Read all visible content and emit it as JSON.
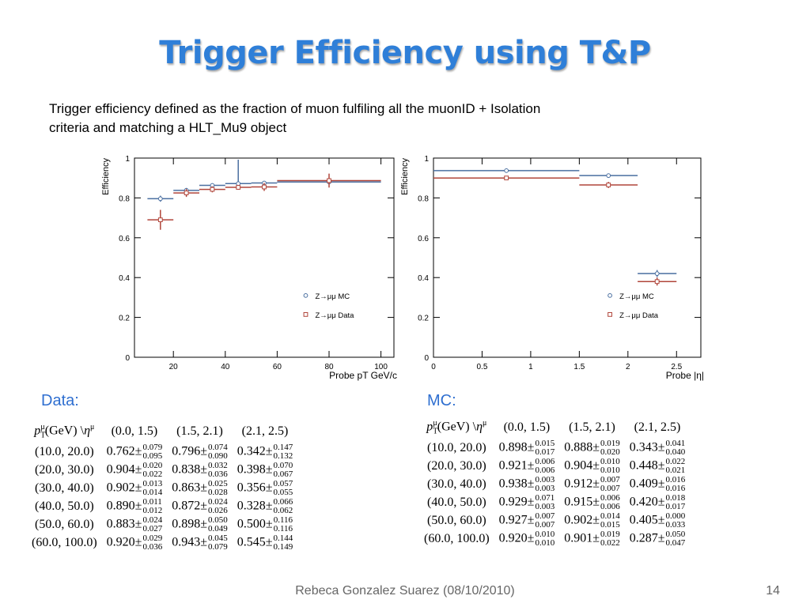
{
  "slide": {
    "title": "Trigger Efficiency using T&P",
    "subtitle_line1": "Trigger efficiency defined as the fraction of muon fulfiling all the muonID + Isolation",
    "subtitle_line2": "criteria and matching a HLT_Mu9 object",
    "footer": "Rebeca Gonzalez Suarez  (08/10/2010)",
    "page_number": "14"
  },
  "colors": {
    "title": "#2f7fd8",
    "mc": "#4a6fa0",
    "data": "#b0453a",
    "section": "#2f6fd0"
  },
  "chart_data": [
    {
      "type": "scatter",
      "ylabel": "Efficiency",
      "xlabel": "Probe pT GeV/c",
      "xlim": [
        5,
        105
      ],
      "ylim": [
        0,
        1
      ],
      "xticks": [
        20,
        40,
        60,
        80,
        100
      ],
      "yticks": [
        0,
        0.2,
        0.4,
        0.6,
        0.8,
        1
      ],
      "legend": {
        "position": "bottom-right",
        "entries": [
          "Z→μμ  MC",
          "Z→μμ  Data"
        ]
      },
      "series": [
        {
          "name": "Z→μμ  MC",
          "marker": "circle",
          "color": "#4a6fa0",
          "points": [
            {
              "x": 15,
              "xlo": 10,
              "xhi": 20,
              "y": 0.796,
              "eup": 0.015,
              "edn": 0.015
            },
            {
              "x": 25,
              "xlo": 20,
              "xhi": 30,
              "y": 0.838,
              "eup": 0.012,
              "edn": 0.012
            },
            {
              "x": 35,
              "xlo": 30,
              "xhi": 40,
              "y": 0.863,
              "eup": 0.01,
              "edn": 0.01
            },
            {
              "x": 45,
              "xlo": 40,
              "xhi": 50,
              "y": 0.872,
              "eup": 0.12,
              "edn": 0.02
            },
            {
              "x": 55,
              "xlo": 50,
              "xhi": 60,
              "y": 0.875,
              "eup": 0.01,
              "edn": 0.01
            },
            {
              "x": 80,
              "xlo": 60,
              "xhi": 100,
              "y": 0.88,
              "eup": 0.01,
              "edn": 0.01
            }
          ]
        },
        {
          "name": "Z→μμ  Data",
          "marker": "square",
          "color": "#b0453a",
          "points": [
            {
              "x": 15,
              "xlo": 10,
              "xhi": 20,
              "y": 0.69,
              "eup": 0.05,
              "edn": 0.05
            },
            {
              "x": 25,
              "xlo": 20,
              "xhi": 30,
              "y": 0.825,
              "eup": 0.02,
              "edn": 0.02
            },
            {
              "x": 35,
              "xlo": 30,
              "xhi": 40,
              "y": 0.843,
              "eup": 0.015,
              "edn": 0.015
            },
            {
              "x": 45,
              "xlo": 40,
              "xhi": 50,
              "y": 0.853,
              "eup": 0.012,
              "edn": 0.012
            },
            {
              "x": 55,
              "xlo": 50,
              "xhi": 60,
              "y": 0.855,
              "eup": 0.02,
              "edn": 0.02
            },
            {
              "x": 80,
              "xlo": 60,
              "xhi": 100,
              "y": 0.887,
              "eup": 0.035,
              "edn": 0.035
            }
          ]
        }
      ]
    },
    {
      "type": "scatter",
      "ylabel": "Efficiency",
      "xlabel": "Probe |η|",
      "xlim": [
        0,
        2.75
      ],
      "ylim": [
        0,
        1
      ],
      "xticks": [
        0,
        0.5,
        1,
        1.5,
        2,
        2.5
      ],
      "yticks": [
        0,
        0.2,
        0.4,
        0.6,
        0.8,
        1
      ],
      "legend": {
        "position": "bottom-right",
        "entries": [
          "Z→μμ  MC",
          "Z→μμ  Data"
        ]
      },
      "series": [
        {
          "name": "Z→μμ  MC",
          "marker": "circle",
          "color": "#4a6fa0",
          "points": [
            {
              "x": 0.75,
              "xlo": 0.0,
              "xhi": 1.5,
              "y": 0.937,
              "eup": 0.005,
              "edn": 0.005
            },
            {
              "x": 1.8,
              "xlo": 1.5,
              "xhi": 2.1,
              "y": 0.912,
              "eup": 0.007,
              "edn": 0.007
            },
            {
              "x": 2.3,
              "xlo": 2.1,
              "xhi": 2.5,
              "y": 0.42,
              "eup": 0.018,
              "edn": 0.017
            }
          ]
        },
        {
          "name": "Z→μμ  Data",
          "marker": "square",
          "color": "#b0453a",
          "points": [
            {
              "x": 0.75,
              "xlo": 0.0,
              "xhi": 1.5,
              "y": 0.9,
              "eup": 0.008,
              "edn": 0.008
            },
            {
              "x": 1.8,
              "xlo": 1.5,
              "xhi": 2.1,
              "y": 0.865,
              "eup": 0.015,
              "edn": 0.015
            },
            {
              "x": 2.3,
              "xlo": 2.1,
              "xhi": 2.5,
              "y": 0.38,
              "eup": 0.02,
              "edn": 0.02
            }
          ]
        }
      ]
    }
  ],
  "tables": [
    {
      "label": "Data:",
      "header": [
        "(0.0, 1.5)",
        "(1.5, 2.1)",
        "(2.1, 2.5)"
      ],
      "rows": [
        {
          "range": "(10.0, 20.0)",
          "cells": [
            [
              "0.762",
              "0.079",
              "0.095"
            ],
            [
              "0.796",
              "0.074",
              "0.090"
            ],
            [
              "0.342",
              "0.147",
              "0.132"
            ]
          ]
        },
        {
          "range": "(20.0, 30.0)",
          "cells": [
            [
              "0.904",
              "0.020",
              "0.022"
            ],
            [
              "0.838",
              "0.032",
              "0.036"
            ],
            [
              "0.398",
              "0.070",
              "0.067"
            ]
          ]
        },
        {
          "range": "(30.0, 40.0)",
          "cells": [
            [
              "0.902",
              "0.013",
              "0.014"
            ],
            [
              "0.863",
              "0.025",
              "0.028"
            ],
            [
              "0.356",
              "0.057",
              "0.055"
            ]
          ]
        },
        {
          "range": "(40.0, 50.0)",
          "cells": [
            [
              "0.890",
              "0.011",
              "0.012"
            ],
            [
              "0.872",
              "0.024",
              "0.026"
            ],
            [
              "0.328",
              "0.066",
              "0.062"
            ]
          ]
        },
        {
          "range": "(50.0, 60.0)",
          "cells": [
            [
              "0.883",
              "0.024",
              "0.027"
            ],
            [
              "0.898",
              "0.050",
              "0.049"
            ],
            [
              "0.500",
              "0.116",
              "0.116"
            ]
          ]
        },
        {
          "range": "(60.0, 100.0)",
          "cells": [
            [
              "0.920",
              "0.029",
              "0.036"
            ],
            [
              "0.943",
              "0.045",
              "0.079"
            ],
            [
              "0.545",
              "0.144",
              "0.149"
            ]
          ]
        }
      ]
    },
    {
      "label": "MC:",
      "header": [
        "(0.0, 1.5)",
        "(1.5, 2.1)",
        "(2.1, 2.5)"
      ],
      "rows": [
        {
          "range": "(10.0, 20.0)",
          "cells": [
            [
              "0.898",
              "0.015",
              "0.017"
            ],
            [
              "0.888",
              "0.019",
              "0.020"
            ],
            [
              "0.343",
              "0.041",
              "0.040"
            ]
          ]
        },
        {
          "range": "(20.0, 30.0)",
          "cells": [
            [
              "0.921",
              "0.006",
              "0.006"
            ],
            [
              "0.904",
              "0.010",
              "0.010"
            ],
            [
              "0.448",
              "0.022",
              "0.021"
            ]
          ]
        },
        {
          "range": "(30.0, 40.0)",
          "cells": [
            [
              "0.938",
              "0.003",
              "0.003"
            ],
            [
              "0.912",
              "0.007",
              "0.007"
            ],
            [
              "0.409",
              "0.016",
              "0.016"
            ]
          ]
        },
        {
          "range": "(40.0, 50.0)",
          "cells": [
            [
              "0.929",
              "0.071",
              "0.003"
            ],
            [
              "0.915",
              "0.006",
              "0.006"
            ],
            [
              "0.420",
              "0.018",
              "0.017"
            ]
          ]
        },
        {
          "range": "(50.0, 60.0)",
          "cells": [
            [
              "0.927",
              "0.007",
              "0.007"
            ],
            [
              "0.902",
              "0.014",
              "0.015"
            ],
            [
              "0.405",
              "0.000",
              "0.033"
            ]
          ]
        },
        {
          "range": "(60.0, 100.0)",
          "cells": [
            [
              "0.920",
              "0.010",
              "0.010"
            ],
            [
              "0.901",
              "0.019",
              "0.022"
            ],
            [
              "0.287",
              "0.050",
              "0.047"
            ]
          ]
        }
      ]
    }
  ]
}
